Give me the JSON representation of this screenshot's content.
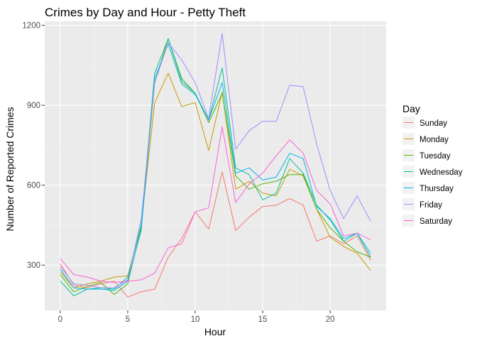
{
  "chart_data": {
    "type": "line",
    "title": "Crimes by Day and Hour - Petty Theft",
    "xlabel": "Hour",
    "ylabel": "Number of Reported Crimes",
    "xlim": [
      -1.15,
      24.15
    ],
    "ylim": [
      130,
      1215
    ],
    "xticks": [
      0,
      5,
      10,
      15,
      20
    ],
    "yticks": [
      300,
      600,
      900,
      1200
    ],
    "grid": true,
    "legend": {
      "title": "Day",
      "position": "right"
    },
    "x": [
      0,
      1,
      2,
      3,
      4,
      5,
      6,
      7,
      8,
      9,
      10,
      11,
      12,
      13,
      14,
      15,
      16,
      17,
      18,
      19,
      20,
      21,
      22,
      23
    ],
    "series": [
      {
        "name": "Sunday",
        "color": "#F8766D",
        "values": [
          305,
          225,
          215,
          230,
          240,
          180,
          200,
          210,
          330,
          400,
          500,
          435,
          650,
          430,
          480,
          520,
          525,
          550,
          525,
          390,
          410,
          380,
          410,
          320
        ]
      },
      {
        "name": "Monday",
        "color": "#C49A00",
        "values": [
          275,
          215,
          230,
          240,
          255,
          260,
          450,
          910,
          1020,
          895,
          910,
          730,
          950,
          585,
          615,
          570,
          560,
          660,
          635,
          510,
          405,
          370,
          345,
          280
        ]
      },
      {
        "name": "Tuesday",
        "color": "#53B400",
        "values": [
          265,
          200,
          220,
          235,
          190,
          230,
          440,
          985,
          1150,
          990,
          945,
          835,
          945,
          635,
          585,
          605,
          615,
          640,
          640,
          510,
          440,
          390,
          350,
          330
        ]
      },
      {
        "name": "Wednesday",
        "color": "#00C094",
        "values": [
          240,
          185,
          210,
          215,
          210,
          255,
          450,
          1020,
          1150,
          1000,
          945,
          845,
          1040,
          665,
          640,
          545,
          570,
          700,
          645,
          525,
          470,
          390,
          420,
          330
        ]
      },
      {
        "name": "Thursday",
        "color": "#00B6EB",
        "values": [
          285,
          215,
          210,
          210,
          205,
          240,
          430,
          1000,
          1130,
          980,
          940,
          845,
          985,
          645,
          665,
          620,
          630,
          720,
          700,
          520,
          475,
          400,
          420,
          345
        ]
      },
      {
        "name": "Friday",
        "color": "#A58AFF",
        "values": [
          295,
          230,
          225,
          215,
          215,
          245,
          470,
          985,
          1135,
          1070,
          985,
          850,
          1170,
          735,
          805,
          840,
          840,
          975,
          970,
          755,
          580,
          475,
          560,
          465
        ]
      },
      {
        "name": "Saturday",
        "color": "#FB61D7",
        "values": [
          325,
          265,
          255,
          240,
          235,
          240,
          245,
          270,
          365,
          380,
          500,
          515,
          820,
          535,
          605,
          645,
          710,
          770,
          720,
          580,
          530,
          410,
          420,
          395
        ]
      }
    ]
  }
}
